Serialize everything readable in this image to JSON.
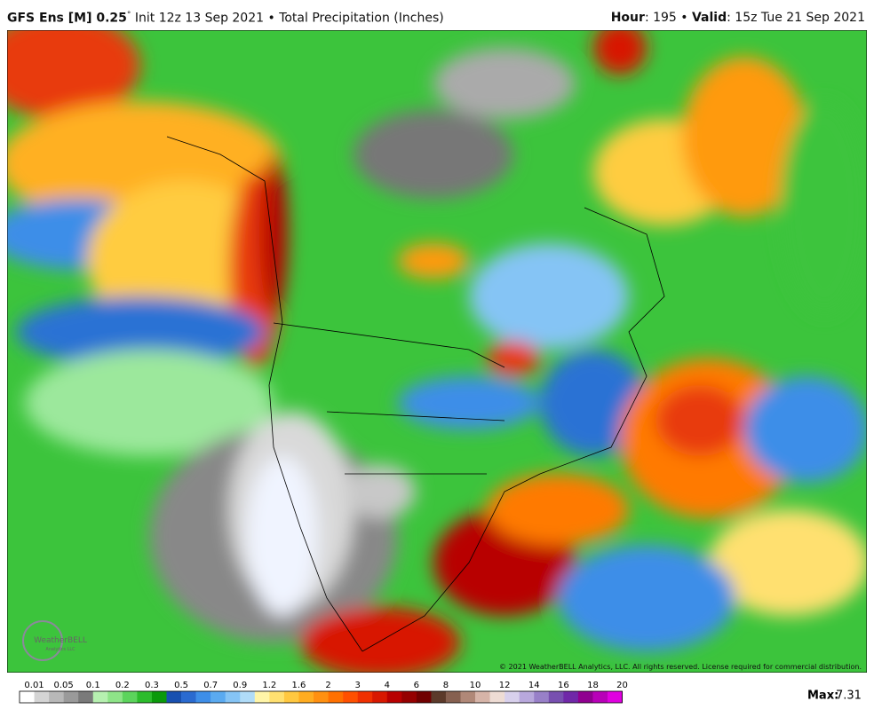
{
  "header": {
    "model": "GFS Ens [M] 0.25",
    "degree": "°",
    "description": " Init 12z 13 Sep 2021 • Total Precipitation (Inches)",
    "hour_label": "Hour",
    "hour_value": ": 195 • ",
    "valid_label": "Valid",
    "valid_value": ": 15z Tue 21 Sep 2021"
  },
  "map": {
    "logo": "WeatherBELL",
    "logo_sub": "Analytics LLC",
    "copyright": "© 2021 WeatherBELL Analytics, LLC. All rights reserved. License required for commercial distribution."
  },
  "legend": {
    "labels": [
      "0.01",
      "0.05",
      "0.1",
      "0.2",
      "0.3",
      "0.5",
      "0.7",
      "0.9",
      "1.2",
      "1.6",
      "2",
      "3",
      "4",
      "6",
      "8",
      "10",
      "12",
      "14",
      "16",
      "18",
      "20"
    ],
    "max_label": "Max:",
    "max_value": "7.31"
  }
}
